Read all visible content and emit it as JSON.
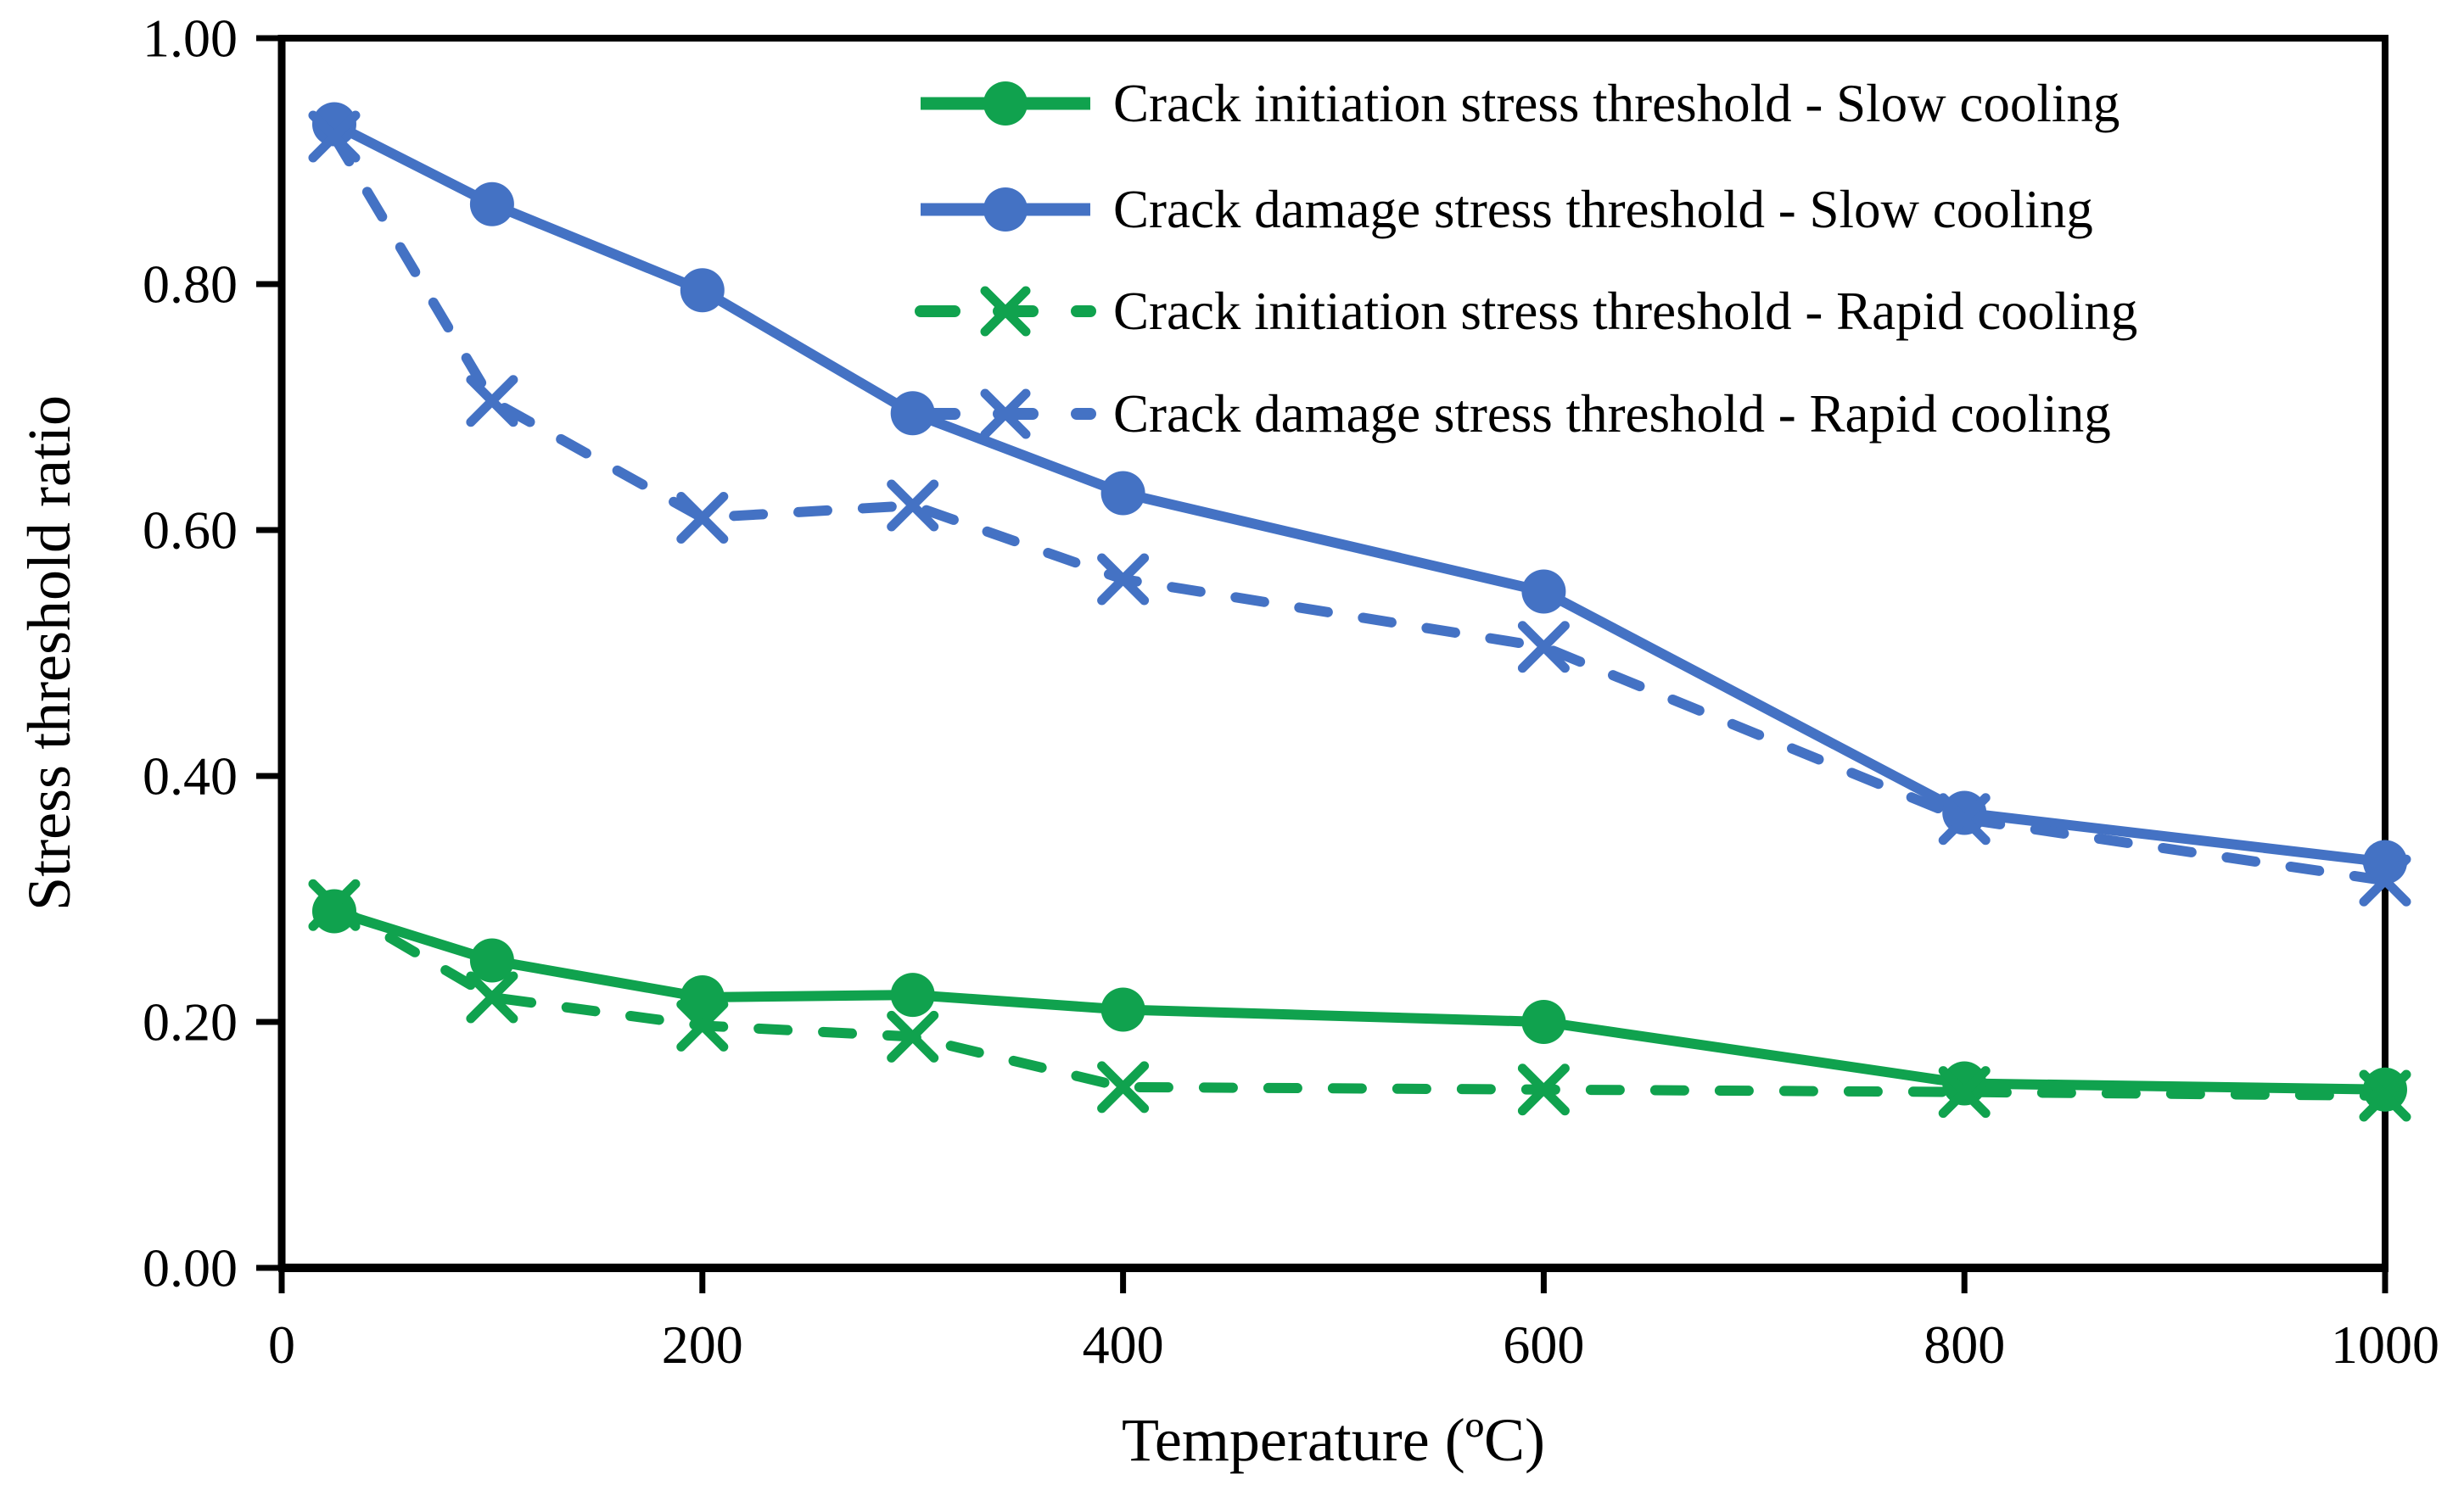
{
  "chart_data": {
    "type": "line",
    "title": "",
    "xlabel": "Temperature (ºC)",
    "ylabel": "Stress threshold ratio",
    "xlim": [
      0,
      1000
    ],
    "ylim": [
      0.0,
      1.0
    ],
    "grid": false,
    "legend_position": "top-inside",
    "x_ticks": [
      0,
      200,
      400,
      600,
      800,
      1000
    ],
    "x_tick_labels": [
      "0",
      "200",
      "400",
      "600",
      "800",
      "1000"
    ],
    "y_ticks": [
      0.0,
      0.2,
      0.4,
      0.6,
      0.8,
      1.0
    ],
    "y_tick_labels": [
      "0.00",
      "0.20",
      "0.40",
      "0.60",
      "0.80",
      "1.00"
    ],
    "x": [
      25,
      100,
      200,
      300,
      400,
      600,
      800,
      1000
    ],
    "series": [
      {
        "name": "Crack initiation stress threshold - Slow cooling",
        "color": "#10A24E",
        "line": "solid",
        "marker": "circle",
        "values": [
          0.29,
          0.25,
          0.22,
          0.222,
          0.21,
          0.2,
          0.15,
          0.145
        ]
      },
      {
        "name": "Crack damage stress threshold - Slow cooling",
        "color": "#4472C4",
        "line": "solid",
        "marker": "circle",
        "values": [
          0.93,
          0.865,
          0.795,
          0.695,
          0.63,
          0.55,
          0.37,
          0.33
        ]
      },
      {
        "name": "Crack initiation stress threshold - Rapid cooling",
        "color": "#10A24E",
        "line": "dashed",
        "marker": "x",
        "values": [
          0.295,
          0.22,
          0.197,
          0.188,
          0.147,
          0.145,
          0.143,
          0.14
        ]
      },
      {
        "name": "Crack damage stress threshold - Rapid cooling",
        "color": "#4472C4",
        "line": "dashed",
        "marker": "x",
        "values": [
          0.92,
          0.705,
          0.61,
          0.62,
          0.56,
          0.505,
          0.365,
          0.315
        ]
      }
    ]
  }
}
